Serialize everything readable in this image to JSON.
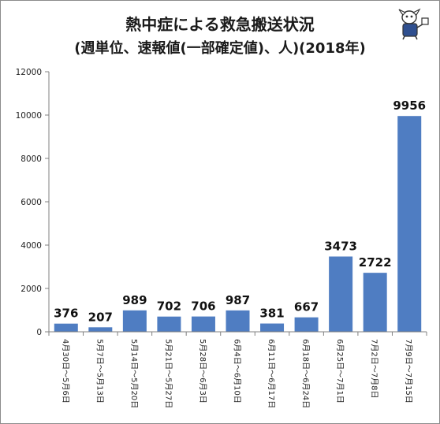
{
  "title": "熱中症による救急搬送状況",
  "subtitle": "(週単位、速報値(一部確定値)、人)(2018年)",
  "colors": {
    "bar": "#4f7dc2",
    "axis": "#808080"
  },
  "mascot_icon": "jiji-mascot-logo",
  "chart_data": {
    "type": "bar",
    "title": "熱中症による救急搬送状況",
    "subtitle": "(週単位、速報値(一部確定値)、人)(2018年)",
    "categories": [
      "4月30日〜5月6日",
      "5月7日〜5月13日",
      "5月14日〜5月20日",
      "5月21日〜5月27日",
      "5月28日〜6月3日",
      "6月4日〜6月10日",
      "6月11日〜6月17日",
      "6月18日〜6月24日",
      "6月25日〜7月1日",
      "7月2日〜7月8日",
      "7月9日〜7月15日"
    ],
    "values": [
      376,
      207,
      989,
      702,
      706,
      987,
      381,
      667,
      3473,
      2722,
      9956
    ],
    "ylim": [
      0,
      12000
    ],
    "yticks": [
      0,
      2000,
      4000,
      6000,
      8000,
      10000,
      12000
    ],
    "grid": false,
    "legend": "none"
  }
}
